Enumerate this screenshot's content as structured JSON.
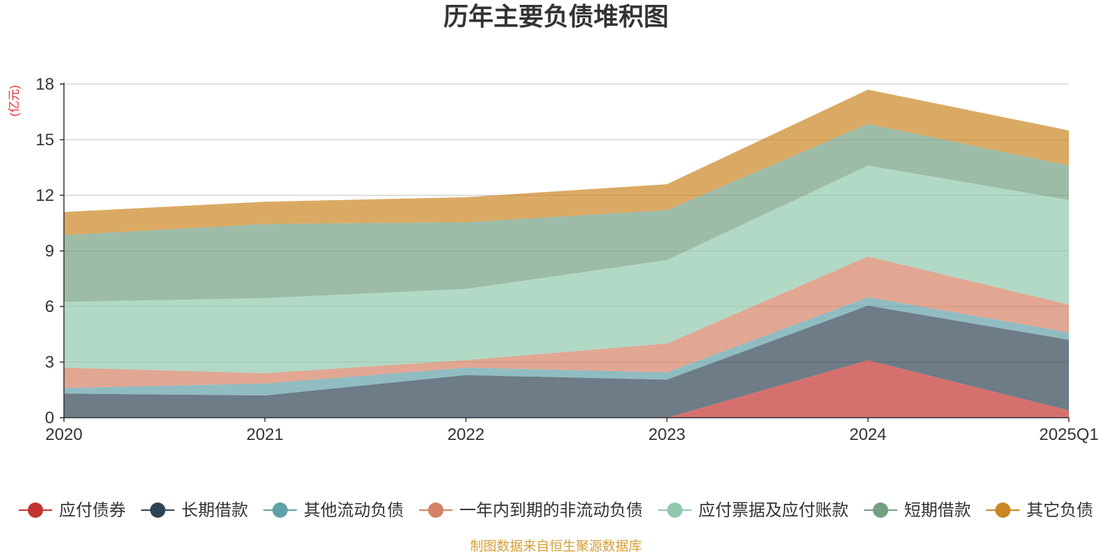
{
  "chart_data": {
    "type": "area",
    "stacked": true,
    "title": "历年主要负债堆积图",
    "ylabel": "(亿元)",
    "xlabel": "",
    "categories": [
      "2020",
      "2021",
      "2022",
      "2023",
      "2024",
      "2025Q1"
    ],
    "ylim": [
      0,
      18
    ],
    "yticks": [
      0,
      3,
      6,
      9,
      12,
      15,
      18
    ],
    "grid": true,
    "legend_position": "bottom",
    "series": [
      {
        "name": "应付债券",
        "color": "#c23531",
        "values": [
          0,
          0,
          0,
          0,
          3.1,
          0.4
        ]
      },
      {
        "name": "长期借款",
        "color": "#2f4554",
        "values": [
          1.3,
          1.2,
          2.3,
          2.05,
          2.95,
          3.8
        ]
      },
      {
        "name": "其他流动负债",
        "color": "#61a0a8",
        "values": [
          0.3,
          0.65,
          0.4,
          0.4,
          0.45,
          0.4
        ]
      },
      {
        "name": "一年内到期的非流动负债",
        "color": "#d48265",
        "values": [
          1.1,
          0.55,
          0.4,
          1.55,
          2.2,
          1.5
        ]
      },
      {
        "name": "应付票据及应付账款",
        "color": "#91c7ae",
        "values": [
          3.55,
          4.05,
          3.85,
          4.5,
          4.9,
          5.65
        ]
      },
      {
        "name": "短期借款",
        "color": "#749f83",
        "values": [
          3.6,
          4.0,
          3.6,
          2.7,
          2.25,
          1.85
        ]
      },
      {
        "name": "其它负债",
        "color": "#ca8622",
        "values": [
          1.25,
          1.2,
          1.35,
          1.4,
          1.85,
          1.9
        ]
      }
    ]
  },
  "source": "制图数据来自恒生聚源数据库"
}
